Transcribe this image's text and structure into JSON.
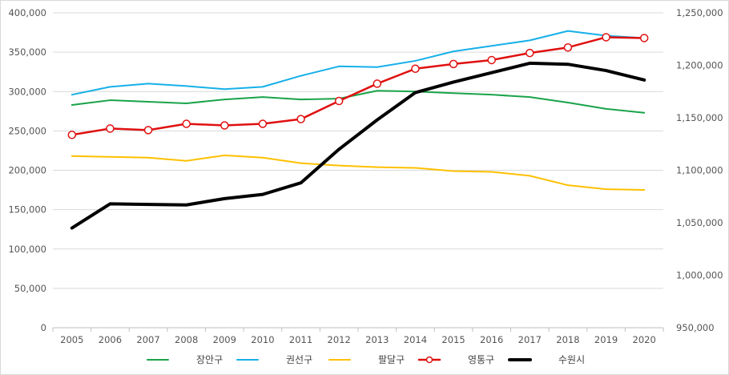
{
  "chart_data": {
    "type": "line",
    "title": "",
    "xlabel": "",
    "ylabel": "",
    "categories": [
      "2005",
      "2006",
      "2007",
      "2008",
      "2009",
      "2010",
      "2011",
      "2012",
      "2013",
      "2014",
      "2015",
      "2016",
      "2017",
      "2018",
      "2019",
      "2020"
    ],
    "left_axis": {
      "range": [
        0,
        400000
      ],
      "ticks": [
        0,
        50000,
        100000,
        150000,
        200000,
        250000,
        300000,
        350000,
        400000
      ],
      "tick_labels": [
        "0",
        "50,000",
        "100,000",
        "150,000",
        "200,000",
        "250,000",
        "300,000",
        "350,000",
        "400,000"
      ]
    },
    "right_axis": {
      "range": [
        950000,
        1250000
      ],
      "ticks": [
        950000,
        1000000,
        1050000,
        1100000,
        1150000,
        1200000,
        1250000
      ],
      "tick_labels": [
        "950,000",
        "1,000,000",
        "1,050,000",
        "1,100,000",
        "1,150,000",
        "1,200,000",
        "1,250,000"
      ]
    },
    "grid": true,
    "legend_position": "bottom",
    "series": [
      {
        "name": "장안구",
        "axis": "left",
        "color": "#1aa34a",
        "marker": "none",
        "width": 2,
        "values": [
          283000,
          289000,
          287000,
          285000,
          290000,
          293000,
          290000,
          291000,
          301000,
          300000,
          298000,
          296000,
          293000,
          286000,
          278000,
          273000
        ]
      },
      {
        "name": "권선구",
        "axis": "left",
        "color": "#16b0e8",
        "marker": "none",
        "width": 2,
        "values": [
          296000,
          306000,
          310000,
          307000,
          303000,
          306000,
          320000,
          332000,
          331000,
          339000,
          351000,
          358000,
          365000,
          377000,
          371000,
          368000
        ]
      },
      {
        "name": "팔달구",
        "axis": "left",
        "color": "#ffc000",
        "marker": "none",
        "width": 2,
        "values": [
          218000,
          217000,
          216000,
          212000,
          219000,
          216000,
          209000,
          206000,
          204000,
          203000,
          199000,
          198000,
          193000,
          181000,
          176000,
          175000
        ]
      },
      {
        "name": "영통구",
        "axis": "left",
        "color": "#e01010",
        "marker": "circle",
        "width": 2.5,
        "values": [
          245000,
          253000,
          251000,
          259000,
          257000,
          259000,
          265000,
          288000,
          310000,
          329000,
          335000,
          340000,
          349000,
          356000,
          369000,
          368000
        ]
      },
      {
        "name": "수원시",
        "axis": "right",
        "color": "#000000",
        "marker": "none",
        "width": 4,
        "values": [
          1045000,
          1068000,
          1067500,
          1067000,
          1073000,
          1077000,
          1088000,
          1120000,
          1148000,
          1174000,
          1184000,
          1193000,
          1202000,
          1201000,
          1195000,
          1186000
        ]
      }
    ]
  }
}
